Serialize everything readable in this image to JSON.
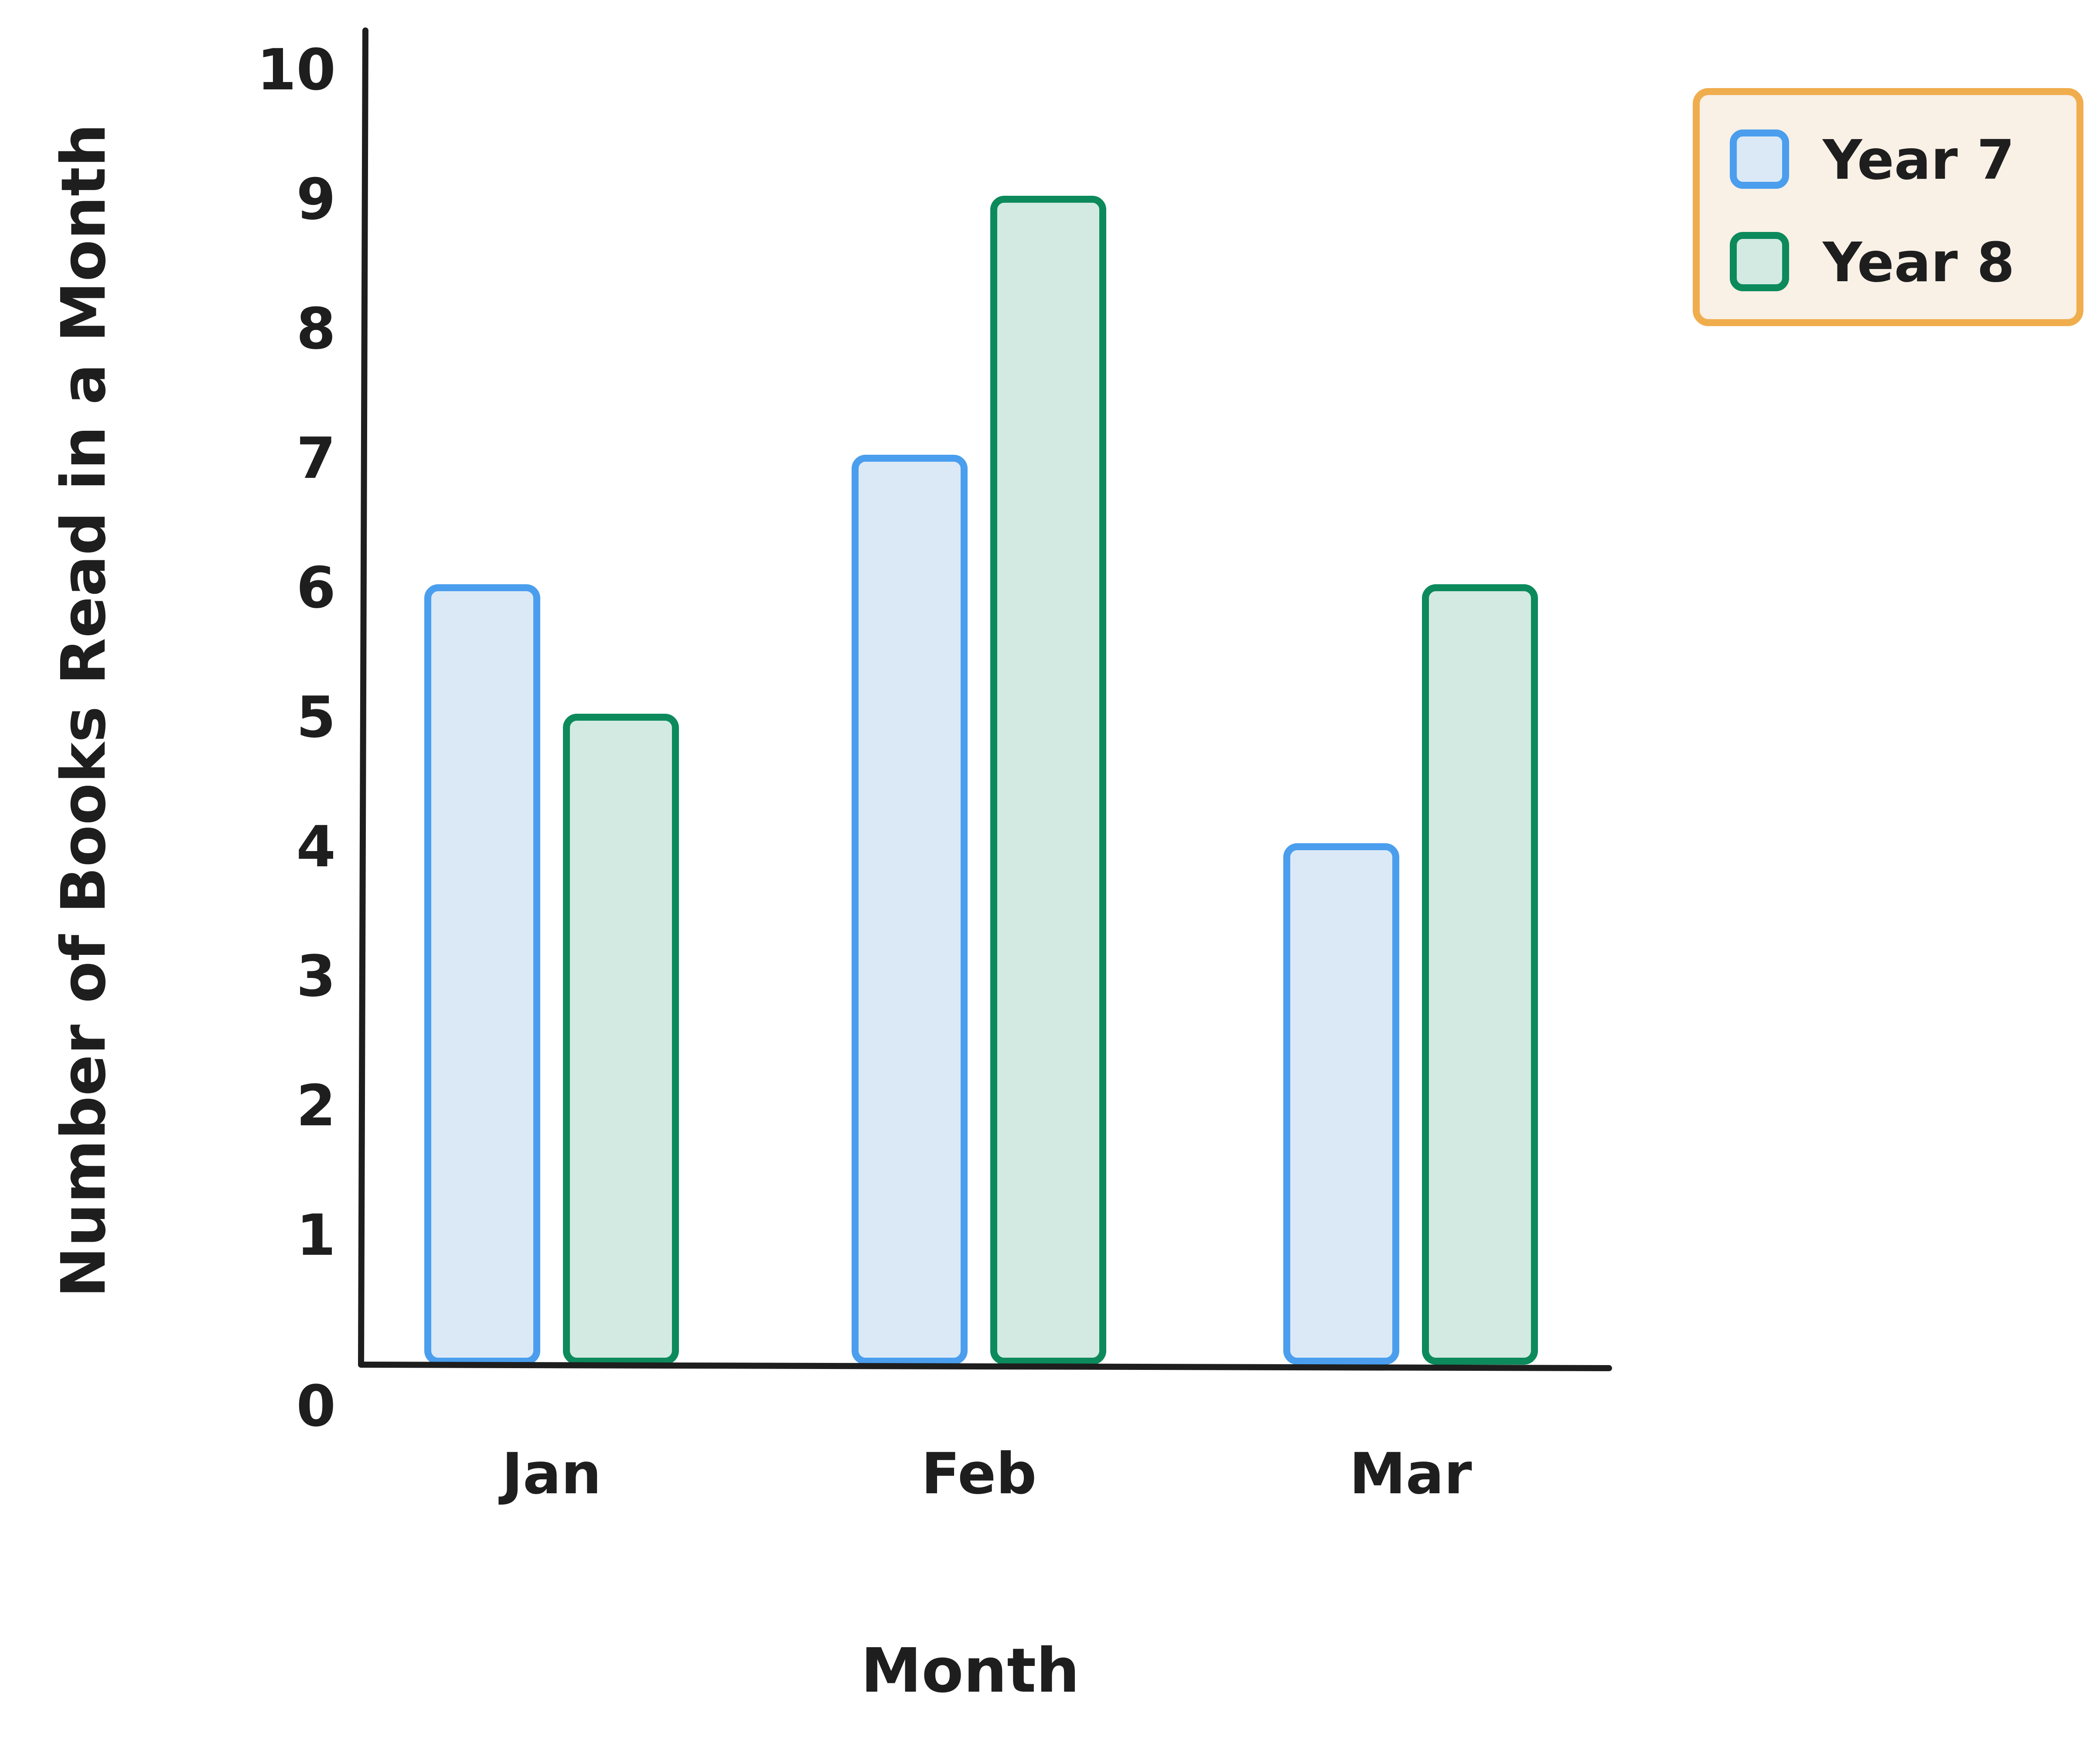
{
  "chart_data": {
    "type": "bar",
    "title": "",
    "xlabel": "Month",
    "ylabel": "Number of Books Read in a Month",
    "categories": [
      "Jan",
      "Feb",
      "Mar"
    ],
    "series": [
      {
        "name": "Year 7",
        "values": [
          6,
          7,
          4
        ],
        "stroke": "#4a9eed",
        "fill": "#dbe9f7"
      },
      {
        "name": "Year 8",
        "values": [
          5,
          9,
          6
        ],
        "stroke": "#0c8a5c",
        "fill": "#d3eae2"
      }
    ],
    "ylim": [
      0,
      10
    ],
    "yticks": [
      "0",
      "1",
      "2",
      "3",
      "4",
      "5",
      "6",
      "7",
      "8",
      "9",
      "10"
    ],
    "grid": false,
    "legend": {
      "placement": "top-right",
      "border_color": "#f0ad4e",
      "background": "#f9f0e6"
    }
  }
}
